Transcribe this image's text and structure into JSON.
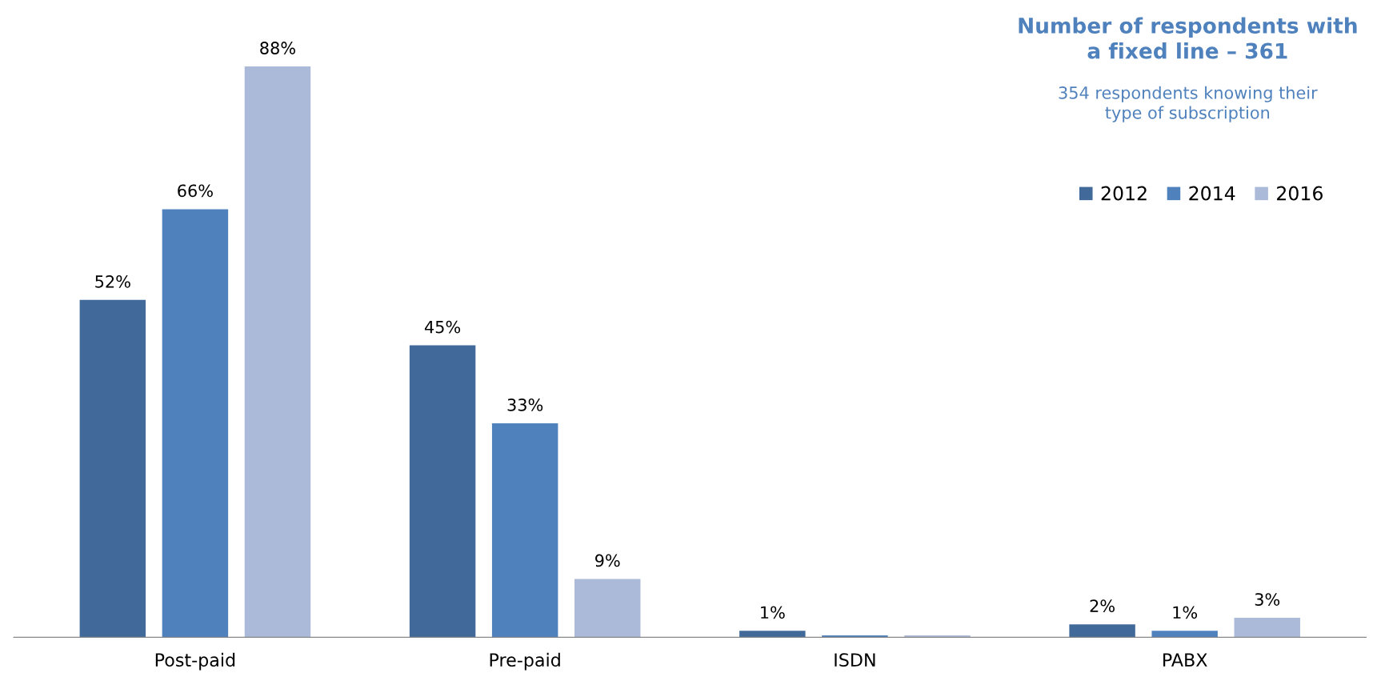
{
  "chart_data": {
    "type": "bar",
    "title": "Number of respondents with\na fixed line – 361",
    "subtitle": "354 respondents knowing their\ntype of subscription",
    "categories": [
      "Post-paid",
      "Pre-paid",
      "ISDN",
      "PABX"
    ],
    "series": [
      {
        "name": "2012",
        "color": "#416a9a",
        "values": [
          52,
          45,
          1,
          2
        ],
        "value_labels": [
          "52%",
          "45%",
          "1%",
          "2%"
        ]
      },
      {
        "name": "2014",
        "color": "#4f81bd",
        "values": [
          66,
          33,
          0.3,
          1
        ],
        "value_labels": [
          "66%",
          "33%",
          null,
          "1%"
        ]
      },
      {
        "name": "2016",
        "color": "#abbad8",
        "values": [
          88,
          9,
          0.3,
          3
        ],
        "value_labels": [
          "88%",
          "9%",
          null,
          "3%"
        ]
      }
    ],
    "legend": "top right",
    "grid": false
  }
}
